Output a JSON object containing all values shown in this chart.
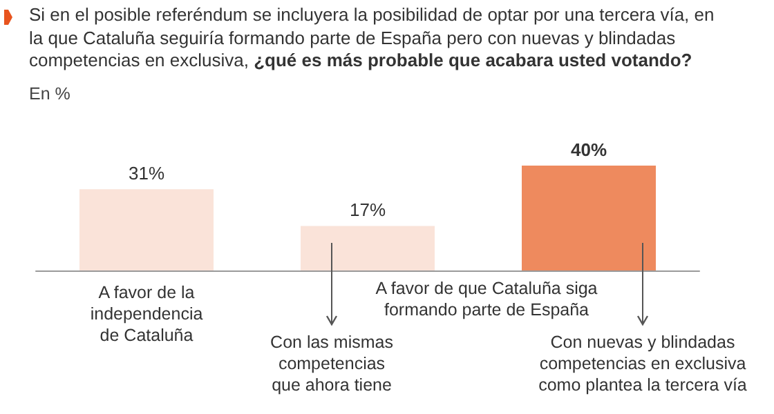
{
  "chart_data": {
    "type": "bar",
    "title": "Si en el posible referéndum se incluyera la posibilidad de optar por una tercera vía, en la que Cataluña seguiría formando parte de España pero con nuevas y blindadas competencias en exclusiva, ¿qué es más probable que acabara usted votando?",
    "subtitle": "En %",
    "categories": [
      "A favor de la\nindependencia\nde Cataluña",
      "Con las mismas\ncompetencias\nque ahora tiene",
      "Con nuevas y blindadas\ncompetencias en exclusiva\ncomo plantea la tercera vía"
    ],
    "values": [
      31,
      17,
      40
    ],
    "colors": [
      "#fae3d9",
      "#fae3d9",
      "#ee8a5e"
    ],
    "value_labels": [
      "31%",
      "17%",
      "40%"
    ],
    "annotations": [
      "A favor de que Cataluña siga\nformando parte de España"
    ]
  }
}
